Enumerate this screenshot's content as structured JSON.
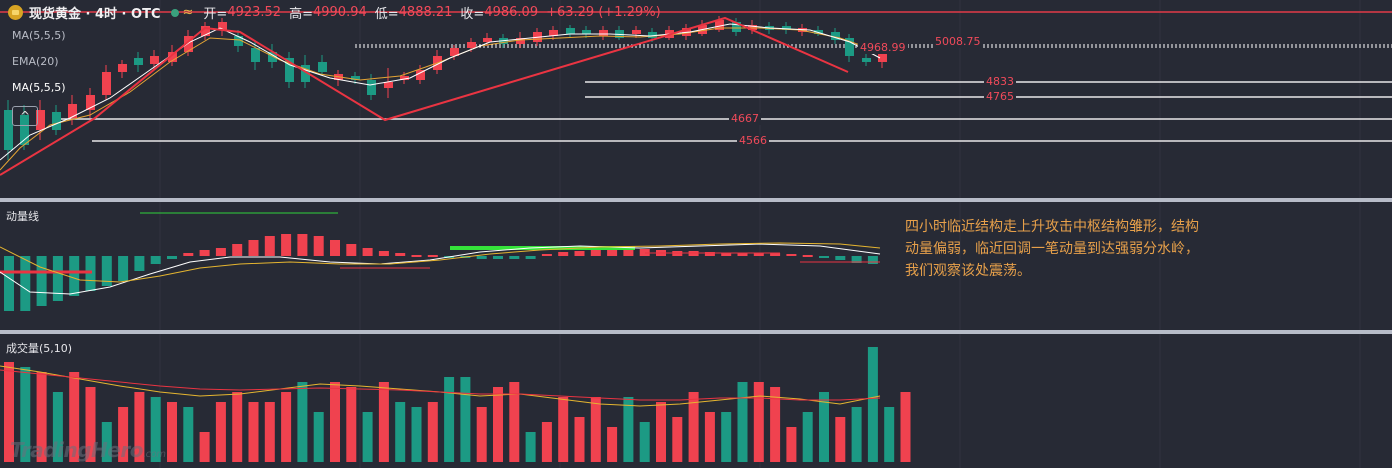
{
  "header": {
    "symbol": "现货黄金 · 4时 · OTC",
    "wave": "≈",
    "open_label": "开=",
    "open": "4923.52",
    "high_label": "高=",
    "high": "4990.94",
    "low_label": "低=",
    "low": "4888.21",
    "close_label": "收=",
    "close": "4986.09",
    "change": "+63.29 (+1.29%)"
  },
  "price_pane": {
    "indicators": [
      "MA(5,5,5)",
      "EMA(20)",
      "MA(5,5,5)"
    ],
    "collapse_icon": "chevron-up-icon",
    "levels": [
      {
        "label": "5008.75",
        "value": 5008.75
      },
      {
        "label": "4968.99",
        "value": 4968.99
      },
      {
        "label": "4833",
        "value": 4833
      },
      {
        "label": "4765",
        "value": 4765
      },
      {
        "label": "4667",
        "value": 4667
      },
      {
        "label": "4566",
        "value": 4566
      }
    ]
  },
  "momentum_pane": {
    "title": "动量线",
    "note": "四小时临近结构走上升攻击中枢结构雏形，结构动量偏弱，临近回调一笔动量到达强弱分水岭，我们观察该处震荡。"
  },
  "volume_pane": {
    "title": "成交量(5,10)",
    "watermark": "TradingHero",
    "watermark_suffix": ".com"
  },
  "colors": {
    "up": "#f0424f",
    "down": "#1c9a84",
    "background": "#272a35",
    "note_text": "#e7a04a"
  }
}
